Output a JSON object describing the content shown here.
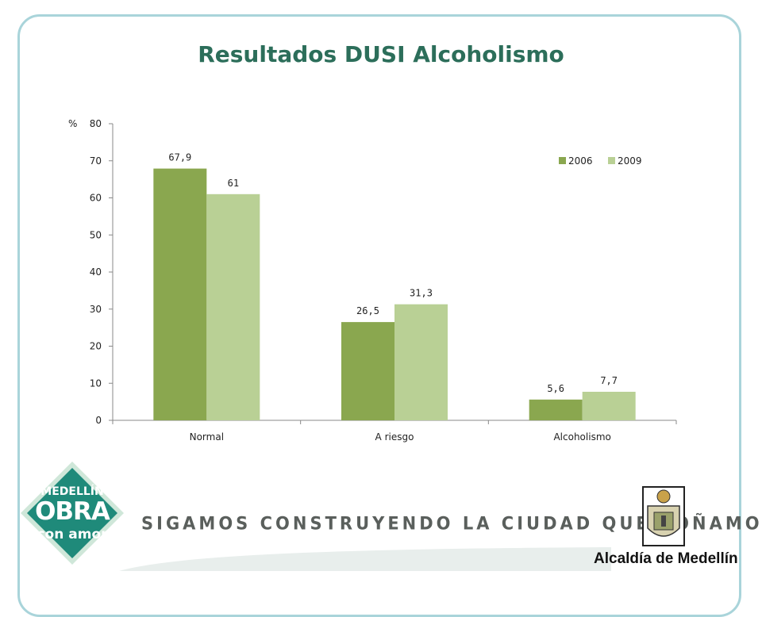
{
  "slide": {
    "title": "Resultados DUSI Alcoholismo",
    "unit_label": "%",
    "slogan": "SIGAMOS CONSTRUYENDO LA CIUDAD QUE SOÑAMOS",
    "badge": {
      "line1": "MEDELLÍN",
      "line2": "OBRA",
      "line3": "con amor"
    },
    "institution": "Alcaldía de Medellín"
  },
  "colors": {
    "series_2006": "#8aa74f",
    "series_2009": "#b9d095",
    "title": "#2c6e5a",
    "frame": "#a9d4da",
    "badge": "#1f8a7a"
  },
  "chart_data": {
    "type": "bar",
    "title": "",
    "xlabel": "",
    "ylabel": "%",
    "ylim": [
      0,
      80
    ],
    "yticks": [
      "0",
      "10",
      "20",
      "30",
      "40",
      "50",
      "60",
      "70",
      "80"
    ],
    "categories": [
      "Normal",
      "A riesgo",
      "Alcoholismo"
    ],
    "series": [
      {
        "name": "2006",
        "values": [
          67.9,
          26.5,
          5.6
        ],
        "labels": [
          "67,9",
          "26,5",
          "5,6"
        ]
      },
      {
        "name": "2009",
        "values": [
          61,
          31.3,
          7.7
        ],
        "labels": [
          "61",
          "31,3",
          "7,7"
        ]
      }
    ],
    "legend": "top-right",
    "grid": false
  }
}
